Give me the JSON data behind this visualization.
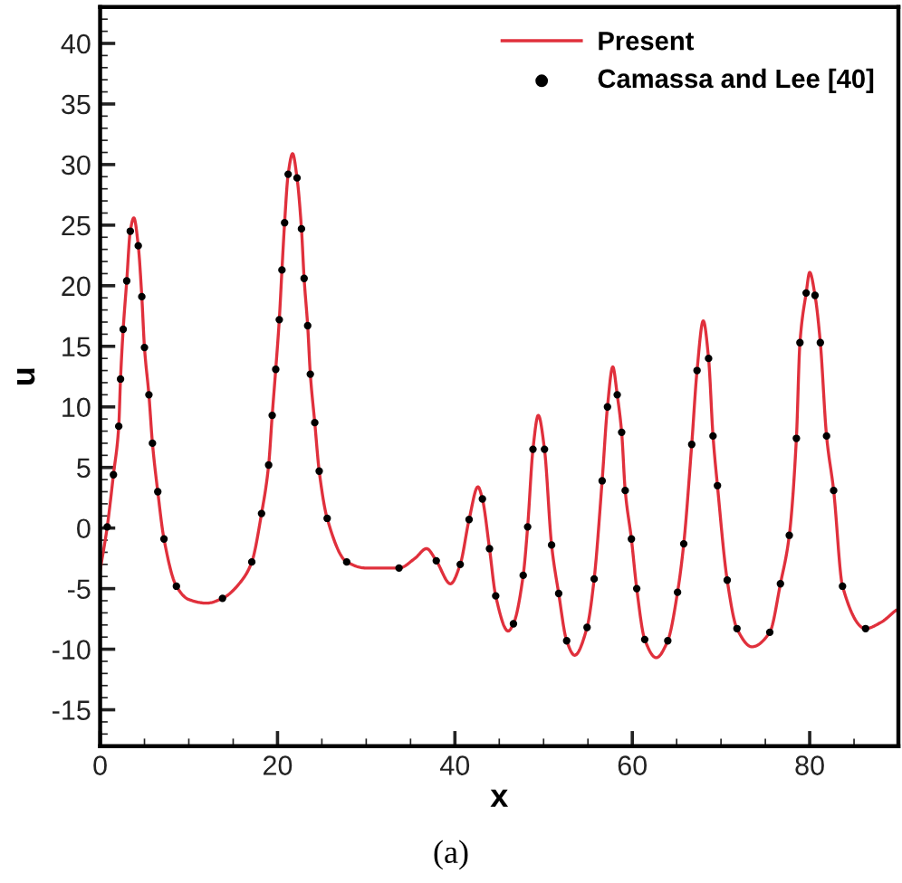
{
  "chart_data": {
    "type": "line",
    "xlabel": "x",
    "ylabel": "u",
    "annotations": [
      "(a)"
    ],
    "xlim": [
      0,
      90
    ],
    "ylim": [
      -18,
      43
    ],
    "xticks": [
      0,
      20,
      40,
      60,
      80
    ],
    "yticks": [
      -15,
      -10,
      -5,
      0,
      5,
      10,
      15,
      20,
      25,
      30,
      35,
      40
    ],
    "grid": false,
    "legend": "top right",
    "series": [
      {
        "name": "Present",
        "color": "#e0303c",
        "marker": "none",
        "line_style": "solid",
        "x": [
          0,
          0.8,
          1.5,
          2.1,
          2.3,
          2.6,
          3.0,
          3.4,
          3.8,
          4.3,
          4.7,
          5.0,
          5.5,
          5.9,
          6.5,
          7.2,
          8.6,
          10,
          12,
          13.8,
          16,
          17.1,
          18.2,
          19.0,
          19.4,
          19.8,
          20.2,
          20.5,
          20.8,
          21.2,
          21.7,
          22.2,
          22.7,
          23.0,
          23.4,
          23.7,
          24.2,
          24.7,
          25.6,
          27.8,
          30,
          33.7,
          35.5,
          36.8,
          37.9,
          39.5,
          40.6,
          41.6,
          42.6,
          43.1,
          43.9,
          44.6,
          46.0,
          46.6,
          47.7,
          48.2,
          48.8,
          49.4,
          50.1,
          50.9,
          51.7,
          52.6,
          53.5,
          54.9,
          55.7,
          56.6,
          57.2,
          57.8,
          58.3,
          58.8,
          59.2,
          59.9,
          60.5,
          61.4,
          62.7,
          64.0,
          65.1,
          65.8,
          66.7,
          67.3,
          68.0,
          68.6,
          69.1,
          69.6,
          70.7,
          71.8,
          73.5,
          75.5,
          76.7,
          77.7,
          78.5,
          78.9,
          79.6,
          80.0,
          80.6,
          81.2,
          81.9,
          82.7,
          83.7,
          86.3,
          88,
          89.7
        ],
        "values": [
          -3.5,
          0.1,
          4.4,
          8.4,
          12.3,
          16.4,
          20.4,
          24.5,
          25.6,
          23.3,
          19.1,
          14.9,
          11.0,
          7.0,
          3.0,
          -0.9,
          -4.8,
          -5.9,
          -6.2,
          -5.8,
          -4.3,
          -2.8,
          1.2,
          5.2,
          9.3,
          13.1,
          17.2,
          21.3,
          25.2,
          29.2,
          30.9,
          28.9,
          24.7,
          20.6,
          16.7,
          12.7,
          8.7,
          4.7,
          0.8,
          -2.8,
          -3.3,
          -3.3,
          -2.5,
          -1.7,
          -2.7,
          -4.6,
          -3.0,
          0.7,
          3.4,
          2.4,
          -1.7,
          -5.6,
          -8.5,
          -7.9,
          -3.9,
          0.1,
          6.5,
          9.3,
          6.5,
          -1.4,
          -5.4,
          -9.3,
          -10.5,
          -8.2,
          -4.2,
          3.9,
          10,
          13.3,
          11,
          7.9,
          3.1,
          -0.9,
          -5.0,
          -9.2,
          -10.7,
          -9.3,
          -5.3,
          -1.3,
          6.9,
          13,
          17.1,
          14,
          7.6,
          3.5,
          -4.3,
          -8.3,
          -9.8,
          -8.6,
          -4.6,
          -0.6,
          7.4,
          15.3,
          19.4,
          21.1,
          19.2,
          15.3,
          7.6,
          3.1,
          -4.8,
          -8.3,
          -7.8,
          -6.8
        ]
      },
      {
        "name": "Camassa and Lee [40]",
        "type": "scatter",
        "color": "#000000",
        "marker": "circle",
        "x": [
          0.8,
          1.5,
          2.1,
          2.3,
          2.6,
          3.0,
          3.4,
          4.3,
          4.7,
          5.0,
          5.5,
          5.9,
          6.5,
          7.2,
          8.6,
          13.8,
          17.1,
          18.2,
          19.0,
          19.4,
          19.8,
          20.2,
          20.5,
          20.8,
          21.2,
          22.2,
          22.7,
          23.0,
          23.4,
          23.7,
          24.2,
          24.7,
          25.6,
          27.8,
          33.7,
          37.9,
          40.6,
          41.6,
          43.1,
          43.9,
          44.6,
          46.6,
          47.7,
          48.2,
          48.8,
          50.1,
          50.9,
          51.7,
          52.6,
          54.9,
          55.7,
          56.6,
          57.2,
          58.3,
          58.8,
          59.2,
          59.9,
          60.5,
          61.4,
          64.0,
          65.1,
          65.8,
          66.7,
          67.3,
          68.6,
          69.1,
          69.6,
          70.7,
          71.8,
          75.5,
          76.7,
          77.7,
          78.5,
          78.9,
          79.6,
          80.6,
          81.2,
          81.9,
          82.7,
          83.7,
          86.3
        ],
        "values": [
          0.1,
          4.4,
          8.4,
          12.3,
          16.4,
          20.4,
          24.5,
          23.3,
          19.1,
          14.9,
          11.0,
          7.0,
          3.0,
          -0.9,
          -4.8,
          -5.8,
          -2.8,
          1.2,
          5.2,
          9.3,
          13.1,
          17.2,
          21.3,
          25.2,
          29.2,
          28.9,
          24.7,
          20.6,
          16.7,
          12.7,
          8.7,
          4.7,
          0.8,
          -2.8,
          -3.3,
          -2.7,
          -3.0,
          0.7,
          2.4,
          -1.7,
          -5.6,
          -7.9,
          -3.9,
          0.1,
          6.5,
          6.5,
          -1.4,
          -5.4,
          -9.3,
          -8.2,
          -4.2,
          3.9,
          10,
          11,
          7.9,
          3.1,
          -0.9,
          -5.0,
          -9.2,
          -9.3,
          -5.3,
          -1.3,
          6.9,
          13,
          14,
          7.6,
          3.5,
          -4.3,
          -8.3,
          -8.6,
          -4.6,
          -0.6,
          7.4,
          15.3,
          19.4,
          19.2,
          15.3,
          7.6,
          3.1,
          -4.8,
          -8.3
        ]
      }
    ]
  }
}
